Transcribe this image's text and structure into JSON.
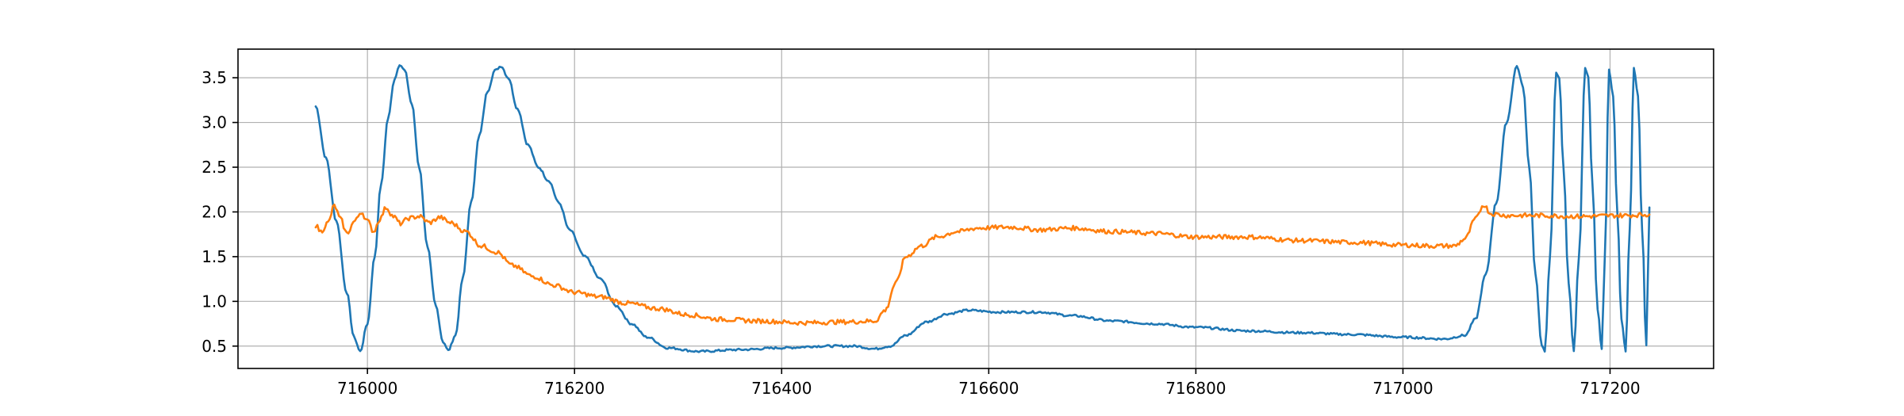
{
  "chart_data": {
    "type": "line",
    "title": "",
    "xlabel": "",
    "ylabel": "",
    "xlim": [
      715875,
      717300
    ],
    "ylim": [
      0.25,
      3.82
    ],
    "grid": true,
    "legend": "none",
    "x_ticks": [
      716000,
      716200,
      716400,
      716600,
      716800,
      717000,
      717200
    ],
    "y_ticks": [
      0.5,
      1.0,
      1.5,
      2.0,
      2.5,
      3.0,
      3.5
    ],
    "x_tick_labels": [
      "716000",
      "716200",
      "716400",
      "716600",
      "716800",
      "717000",
      "717200"
    ],
    "y_tick_labels": [
      "0.5",
      "1.0",
      "1.5",
      "2.0",
      "2.5",
      "3.0",
      "3.5"
    ],
    "series": [
      {
        "color": "#1f77b4",
        "points": [
          [
            715950,
            3.18
          ],
          [
            715960,
            2.6
          ],
          [
            715970,
            1.9
          ],
          [
            715980,
            1.1
          ],
          [
            715987,
            0.6
          ],
          [
            715993,
            0.44
          ],
          [
            716000,
            0.75
          ],
          [
            716007,
            1.5
          ],
          [
            716013,
            2.3
          ],
          [
            716020,
            3.05
          ],
          [
            716026,
            3.48
          ],
          [
            716031,
            3.65
          ],
          [
            716036,
            3.58
          ],
          [
            716043,
            3.2
          ],
          [
            716050,
            2.5
          ],
          [
            716058,
            1.6
          ],
          [
            716066,
            0.95
          ],
          [
            716073,
            0.55
          ],
          [
            716078,
            0.45
          ],
          [
            716085,
            0.62
          ],
          [
            716092,
            1.25
          ],
          [
            716100,
            2.1
          ],
          [
            716108,
            2.85
          ],
          [
            716116,
            3.35
          ],
          [
            716123,
            3.58
          ],
          [
            716129,
            3.63
          ],
          [
            716136,
            3.5
          ],
          [
            716145,
            3.15
          ],
          [
            716155,
            2.75
          ],
          [
            716165,
            2.5
          ],
          [
            716175,
            2.35
          ],
          [
            716185,
            2.1
          ],
          [
            716195,
            1.8
          ],
          [
            716210,
            1.5
          ],
          [
            716225,
            1.25
          ],
          [
            716240,
            0.95
          ],
          [
            716255,
            0.75
          ],
          [
            716270,
            0.6
          ],
          [
            716290,
            0.48
          ],
          [
            716320,
            0.44
          ],
          [
            716360,
            0.46
          ],
          [
            716400,
            0.48
          ],
          [
            716440,
            0.5
          ],
          [
            716470,
            0.5
          ],
          [
            716490,
            0.47
          ],
          [
            716505,
            0.5
          ],
          [
            716520,
            0.62
          ],
          [
            716540,
            0.77
          ],
          [
            716560,
            0.86
          ],
          [
            716580,
            0.9
          ],
          [
            716610,
            0.88
          ],
          [
            716650,
            0.88
          ],
          [
            716680,
            0.84
          ],
          [
            716720,
            0.78
          ],
          [
            716760,
            0.75
          ],
          [
            716800,
            0.71
          ],
          [
            716850,
            0.67
          ],
          [
            716900,
            0.65
          ],
          [
            716950,
            0.63
          ],
          [
            717000,
            0.6
          ],
          [
            717040,
            0.58
          ],
          [
            717060,
            0.62
          ],
          [
            717070,
            0.8
          ],
          [
            717080,
            1.3
          ],
          [
            717090,
            2.1
          ],
          [
            717100,
            3.0
          ],
          [
            717110,
            3.63
          ],
          [
            717116,
            3.4
          ],
          [
            717122,
            2.5
          ],
          [
            717128,
            1.3
          ],
          [
            717134,
            0.5
          ],
          [
            717137,
            0.44
          ],
          [
            717142,
            1.5
          ],
          [
            717148,
            3.55
          ],
          [
            717151,
            3.5
          ],
          [
            717155,
            2.5
          ],
          [
            717160,
            1.2
          ],
          [
            717165,
            0.45
          ],
          [
            717170,
            1.5
          ],
          [
            717176,
            3.6
          ],
          [
            717179,
            3.5
          ],
          [
            717183,
            2.3
          ],
          [
            717188,
            0.9
          ],
          [
            717192,
            0.48
          ],
          [
            717195,
            1.5
          ],
          [
            717199,
            3.58
          ],
          [
            717203,
            3.3
          ],
          [
            717207,
            2.0
          ],
          [
            717211,
            0.8
          ],
          [
            717215,
            0.45
          ],
          [
            717219,
            1.8
          ],
          [
            717223,
            3.6
          ],
          [
            717227,
            3.3
          ],
          [
            717231,
            1.8
          ],
          [
            717235,
            0.5
          ],
          [
            717238,
            2.05
          ]
        ]
      },
      {
        "color": "#ff7f0e",
        "points": [
          [
            715950,
            1.85
          ],
          [
            715955,
            1.78
          ],
          [
            715962,
            1.88
          ],
          [
            715968,
            2.07
          ],
          [
            715974,
            1.92
          ],
          [
            715980,
            1.76
          ],
          [
            715988,
            1.9
          ],
          [
            715994,
            2.0
          ],
          [
            716000,
            1.9
          ],
          [
            716006,
            1.78
          ],
          [
            716012,
            1.92
          ],
          [
            716018,
            2.05
          ],
          [
            716025,
            1.95
          ],
          [
            716032,
            1.87
          ],
          [
            716040,
            1.93
          ],
          [
            716050,
            1.95
          ],
          [
            716060,
            1.88
          ],
          [
            716070,
            1.94
          ],
          [
            716080,
            1.88
          ],
          [
            716095,
            1.78
          ],
          [
            716110,
            1.62
          ],
          [
            716125,
            1.55
          ],
          [
            716140,
            1.4
          ],
          [
            716160,
            1.28
          ],
          [
            716180,
            1.18
          ],
          [
            716200,
            1.1
          ],
          [
            716225,
            1.05
          ],
          [
            716250,
            0.98
          ],
          [
            716280,
            0.92
          ],
          [
            716310,
            0.85
          ],
          [
            716340,
            0.8
          ],
          [
            716380,
            0.78
          ],
          [
            716420,
            0.76
          ],
          [
            716460,
            0.77
          ],
          [
            716490,
            0.78
          ],
          [
            716500,
            0.9
          ],
          [
            716510,
            1.2
          ],
          [
            716520,
            1.5
          ],
          [
            716535,
            1.62
          ],
          [
            716550,
            1.72
          ],
          [
            716570,
            1.78
          ],
          [
            716590,
            1.82
          ],
          [
            716620,
            1.83
          ],
          [
            716650,
            1.8
          ],
          [
            716680,
            1.82
          ],
          [
            716720,
            1.78
          ],
          [
            716760,
            1.76
          ],
          [
            716800,
            1.72
          ],
          [
            716850,
            1.72
          ],
          [
            716900,
            1.68
          ],
          [
            716950,
            1.66
          ],
          [
            717000,
            1.63
          ],
          [
            717030,
            1.62
          ],
          [
            717050,
            1.62
          ],
          [
            717060,
            1.7
          ],
          [
            717070,
            1.92
          ],
          [
            717078,
            2.08
          ],
          [
            717085,
            1.98
          ],
          [
            717100,
            1.96
          ],
          [
            717130,
            1.96
          ],
          [
            717170,
            1.95
          ],
          [
            717210,
            1.96
          ],
          [
            717238,
            1.97
          ]
        ]
      }
    ]
  }
}
